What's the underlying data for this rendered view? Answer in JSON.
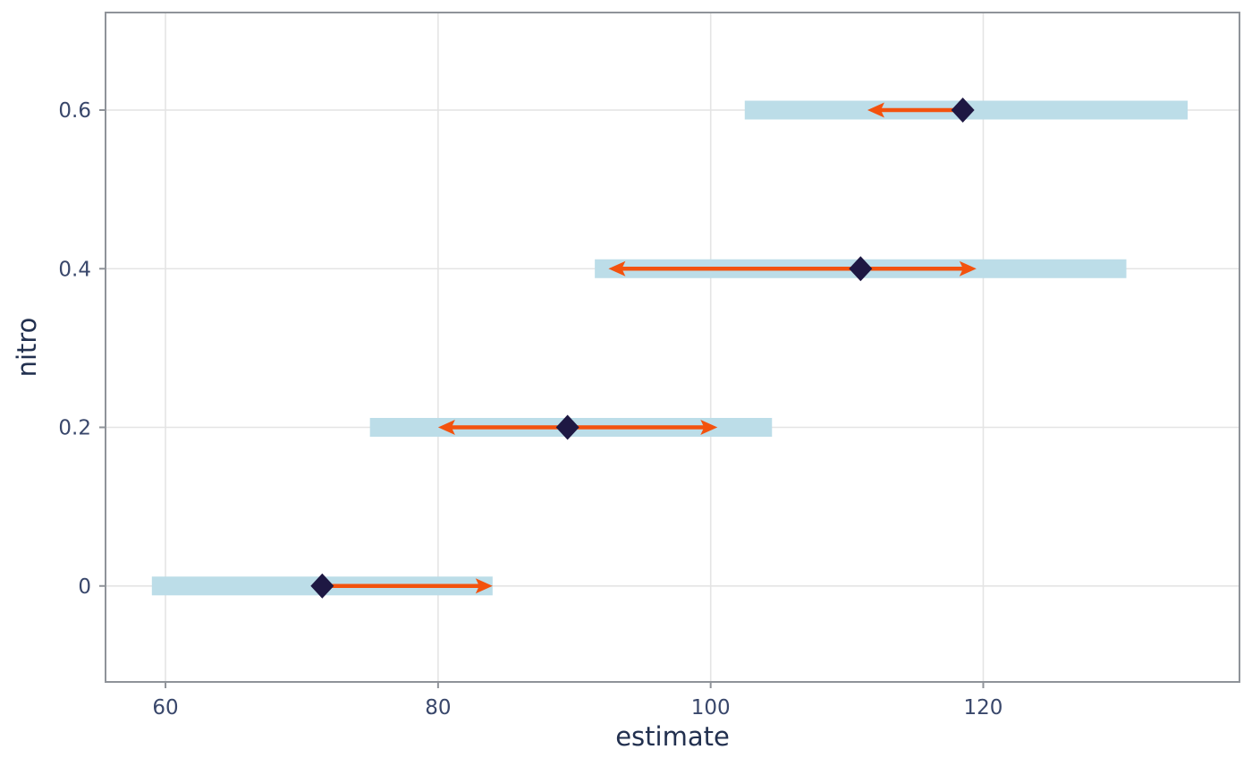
{
  "chart_data": {
    "type": "interval",
    "title": "",
    "xlabel": "estimate",
    "ylabel": "nitro",
    "xlim": [
      55.6,
      138.8
    ],
    "ylim": [
      -0.121,
      0.723
    ],
    "grid": true,
    "legend": "none",
    "x_ticks": [
      {
        "value": 60,
        "label": "60"
      },
      {
        "value": 80,
        "label": "80"
      },
      {
        "value": 100,
        "label": "100"
      },
      {
        "value": 120,
        "label": "120"
      }
    ],
    "y_ticks": [
      {
        "value": 0,
        "label": "0"
      },
      {
        "value": 0.2,
        "label": "0.2"
      },
      {
        "value": 0.4,
        "label": "0.4"
      },
      {
        "value": 0.6,
        "label": "0.6"
      }
    ],
    "series": [
      {
        "nitro": 0,
        "band": [
          59,
          84
        ],
        "estimate": 71.5,
        "arrow": {
          "x1": 71.5,
          "x2": 84,
          "head_left": false,
          "head_right": true
        }
      },
      {
        "nitro": 0.2,
        "band": [
          75,
          104.5
        ],
        "estimate": 89.5,
        "arrow": {
          "x1": 80,
          "x2": 100.5,
          "head_left": true,
          "head_right": true
        }
      },
      {
        "nitro": 0.4,
        "band": [
          91.5,
          130.5
        ],
        "estimate": 111,
        "arrow": {
          "x1": 92.5,
          "x2": 119.5,
          "head_left": true,
          "head_right": true
        }
      },
      {
        "nitro": 0.6,
        "band": [
          102.5,
          135
        ],
        "estimate": 118.5,
        "arrow": {
          "x1": 111.5,
          "x2": 118.5,
          "head_left": true,
          "head_right": false
        }
      }
    ],
    "colors": {
      "band": "#bcdde8",
      "arrow": "#f3520e",
      "point": "#1e1843",
      "grid": "#e4e4e4",
      "panel_border": "#8f9399",
      "tick_text": "#39476b",
      "axis_title": "#22304f",
      "background": "#ffffff"
    }
  }
}
